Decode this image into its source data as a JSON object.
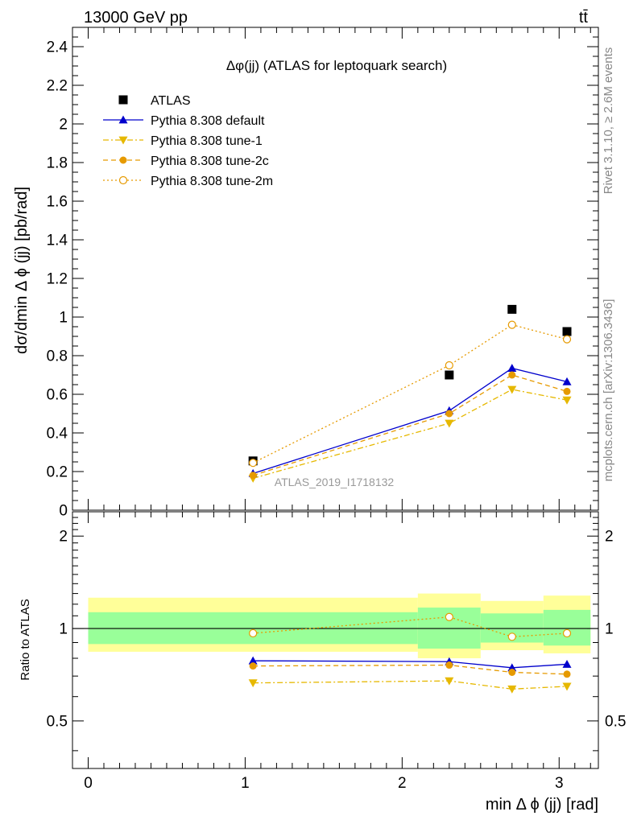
{
  "header": {
    "energy_label": "13000 GeV pp",
    "process_label": "tt̄",
    "plot_title": "Δφ(jj) (ATLAS for leptoquark search)",
    "watermark": "ATLAS_2019_I1718132",
    "side_text_top": "Rivet 3.1.10, ≥ 2.6M events",
    "side_text_bottom": "mcplots.cern.ch [arXiv:1306.3436]"
  },
  "legend": {
    "entries": [
      {
        "label": "ATLAS",
        "color": "#000000",
        "marker": "square-filled",
        "line": "none"
      },
      {
        "label": "Pythia 8.308 default",
        "color": "#0000cc",
        "marker": "triangle-up-filled",
        "line": "solid"
      },
      {
        "label": "Pythia 8.308 tune-1",
        "color": "#e6b800",
        "marker": "triangle-down-filled",
        "line": "dashdot"
      },
      {
        "label": "Pythia 8.308 tune-2c",
        "color": "#e69a00",
        "marker": "circle-filled",
        "line": "dashed"
      },
      {
        "label": "Pythia 8.308 tune-2m",
        "color": "#e69a00",
        "marker": "circle-open",
        "line": "dotted"
      }
    ]
  },
  "chart_data": [
    {
      "type": "line",
      "panel": "main",
      "ylabel": "dσ/dmin Δ ϕ (jj) [pb/rad]",
      "xlim": [
        -0.1,
        3.25
      ],
      "ylim": [
        0,
        2.5
      ],
      "yticks": [
        0,
        0.2,
        0.4,
        0.6,
        0.8,
        1,
        1.2,
        1.4,
        1.6,
        1.8,
        2,
        2.2,
        2.4
      ],
      "ytick_labels": [
        "0",
        "0.2",
        "0.4",
        "0.6",
        "0.8",
        "1",
        "1.2",
        "1.4",
        "1.6",
        "1.8",
        "2",
        "2.2",
        "2.4"
      ],
      "x": [
        1.05,
        2.3,
        2.7,
        3.05
      ],
      "series": [
        {
          "name": "ATLAS",
          "values": [
            0.255,
            0.7,
            1.04,
            0.925
          ]
        },
        {
          "name": "Pythia 8.308 default",
          "values": [
            0.19,
            0.515,
            0.735,
            0.665
          ]
        },
        {
          "name": "Pythia 8.308 tune-1",
          "values": [
            0.165,
            0.45,
            0.625,
            0.57
          ]
        },
        {
          "name": "Pythia 8.308 tune-2c",
          "values": [
            0.18,
            0.5,
            0.7,
            0.615
          ]
        },
        {
          "name": "Pythia 8.308 tune-2m",
          "values": [
            0.245,
            0.75,
            0.96,
            0.885
          ]
        }
      ]
    },
    {
      "type": "line",
      "panel": "ratio",
      "ylabel": "Ratio to ATLAS",
      "xlabel": "min Δ ϕ (jj) [rad]",
      "xlim": [
        -0.1,
        3.25
      ],
      "ylim": [
        0.35,
        2.4
      ],
      "yticks": [
        0.5,
        1,
        2
      ],
      "ytick_labels": [
        "0.5",
        "1",
        "2"
      ],
      "xticks": [
        0,
        1,
        2,
        3
      ],
      "xtick_labels": [
        "0",
        "1",
        "2",
        "3"
      ],
      "x": [
        1.05,
        2.3,
        2.7,
        3.05
      ],
      "bands": [
        {
          "x_low": 0.0,
          "x_high": 2.1,
          "stat": [
            0.89,
            1.13
          ],
          "total": [
            0.84,
            1.26
          ]
        },
        {
          "x_low": 2.1,
          "x_high": 2.5,
          "stat": [
            0.86,
            1.17
          ],
          "total": [
            0.8,
            1.3
          ]
        },
        {
          "x_low": 2.5,
          "x_high": 2.9,
          "stat": [
            0.9,
            1.12
          ],
          "total": [
            0.85,
            1.23
          ]
        },
        {
          "x_low": 2.9,
          "x_high": 3.2,
          "stat": [
            0.88,
            1.15
          ],
          "total": [
            0.83,
            1.28
          ]
        }
      ],
      "series": [
        {
          "name": "Pythia 8.308 default",
          "values": [
            0.785,
            0.78,
            0.745,
            0.765
          ]
        },
        {
          "name": "Pythia 8.308 tune-1",
          "values": [
            0.665,
            0.675,
            0.635,
            0.648
          ]
        },
        {
          "name": "Pythia 8.308 tune-2c",
          "values": [
            0.755,
            0.76,
            0.72,
            0.71
          ]
        },
        {
          "name": "Pythia 8.308 tune-2m",
          "values": [
            0.965,
            1.09,
            0.94,
            0.965
          ]
        }
      ]
    }
  ]
}
